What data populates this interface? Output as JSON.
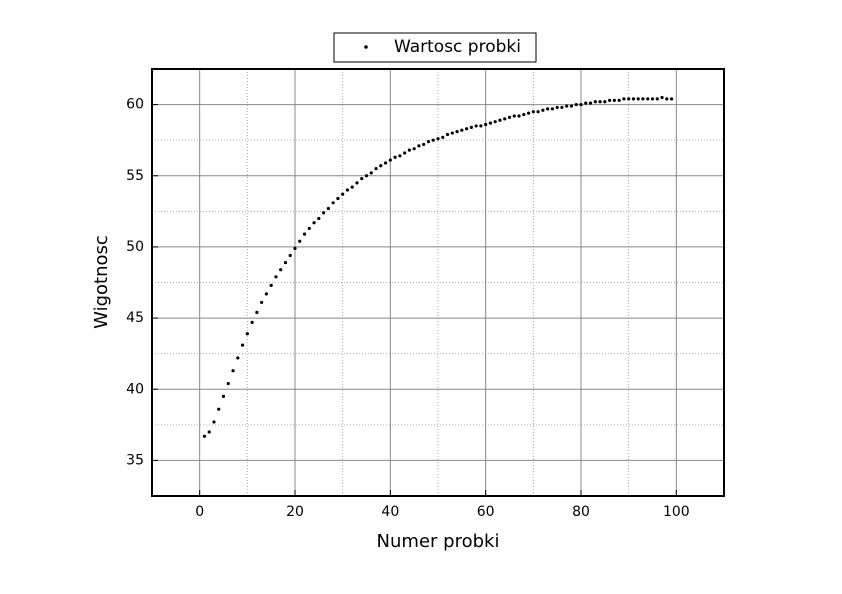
{
  "chart_data": {
    "type": "scatter",
    "xlabel": "Numer probki",
    "ylabel": "Wigotnosc",
    "legend": "top-outside",
    "grid": true,
    "xlim": [
      -10,
      110
    ],
    "ylim": [
      32.5,
      62.5
    ],
    "xticks": [
      0,
      20,
      40,
      60,
      80,
      100
    ],
    "yticks": [
      35,
      40,
      45,
      50,
      55,
      60
    ],
    "minor_xticks": [
      -10,
      10,
      30,
      50,
      70,
      90,
      110
    ],
    "minor_yticks": [
      37.5,
      42.5,
      47.5,
      52.5,
      57.5
    ],
    "series": [
      {
        "name": "Wartosc probki",
        "color": "#000000",
        "x": [
          1,
          2,
          3,
          4,
          5,
          6,
          7,
          8,
          9,
          10,
          11,
          12,
          13,
          14,
          15,
          16,
          17,
          18,
          19,
          20,
          21,
          22,
          23,
          24,
          25,
          26,
          27,
          28,
          29,
          30,
          31,
          32,
          33,
          34,
          35,
          36,
          37,
          38,
          39,
          40,
          41,
          42,
          43,
          44,
          45,
          46,
          47,
          48,
          49,
          50,
          51,
          52,
          53,
          54,
          55,
          56,
          57,
          58,
          59,
          60,
          61,
          62,
          63,
          64,
          65,
          66,
          67,
          68,
          69,
          70,
          71,
          72,
          73,
          74,
          75,
          76,
          77,
          78,
          79,
          80,
          81,
          82,
          83,
          84,
          85,
          86,
          87,
          88,
          89,
          90,
          91,
          92,
          93,
          94,
          95,
          96,
          97,
          98,
          99
        ],
        "values": [
          36.7,
          37.0,
          37.7,
          38.6,
          39.5,
          40.4,
          41.3,
          42.2,
          43.1,
          43.9,
          44.7,
          45.4,
          46.1,
          46.7,
          47.3,
          47.9,
          48.4,
          48.9,
          49.4,
          49.9,
          50.4,
          50.9,
          51.3,
          51.7,
          52.0,
          52.4,
          52.7,
          53.1,
          53.4,
          53.7,
          54.0,
          54.2,
          54.5,
          54.8,
          55.0,
          55.2,
          55.5,
          55.7,
          55.9,
          56.1,
          56.3,
          56.4,
          56.6,
          56.8,
          56.9,
          57.1,
          57.2,
          57.4,
          57.5,
          57.6,
          57.7,
          57.9,
          58.0,
          58.1,
          58.2,
          58.3,
          58.4,
          58.5,
          58.5,
          58.6,
          58.7,
          58.8,
          58.9,
          59.0,
          59.1,
          59.2,
          59.2,
          59.3,
          59.4,
          59.5,
          59.5,
          59.6,
          59.7,
          59.7,
          59.8,
          59.8,
          59.9,
          59.9,
          60.0,
          60.0,
          60.1,
          60.1,
          60.2,
          60.2,
          60.2,
          60.3,
          60.3,
          60.3,
          60.4,
          60.4,
          60.4,
          60.4,
          60.4,
          60.4,
          60.4,
          60.4,
          60.5,
          60.4,
          60.4
        ]
      }
    ]
  }
}
